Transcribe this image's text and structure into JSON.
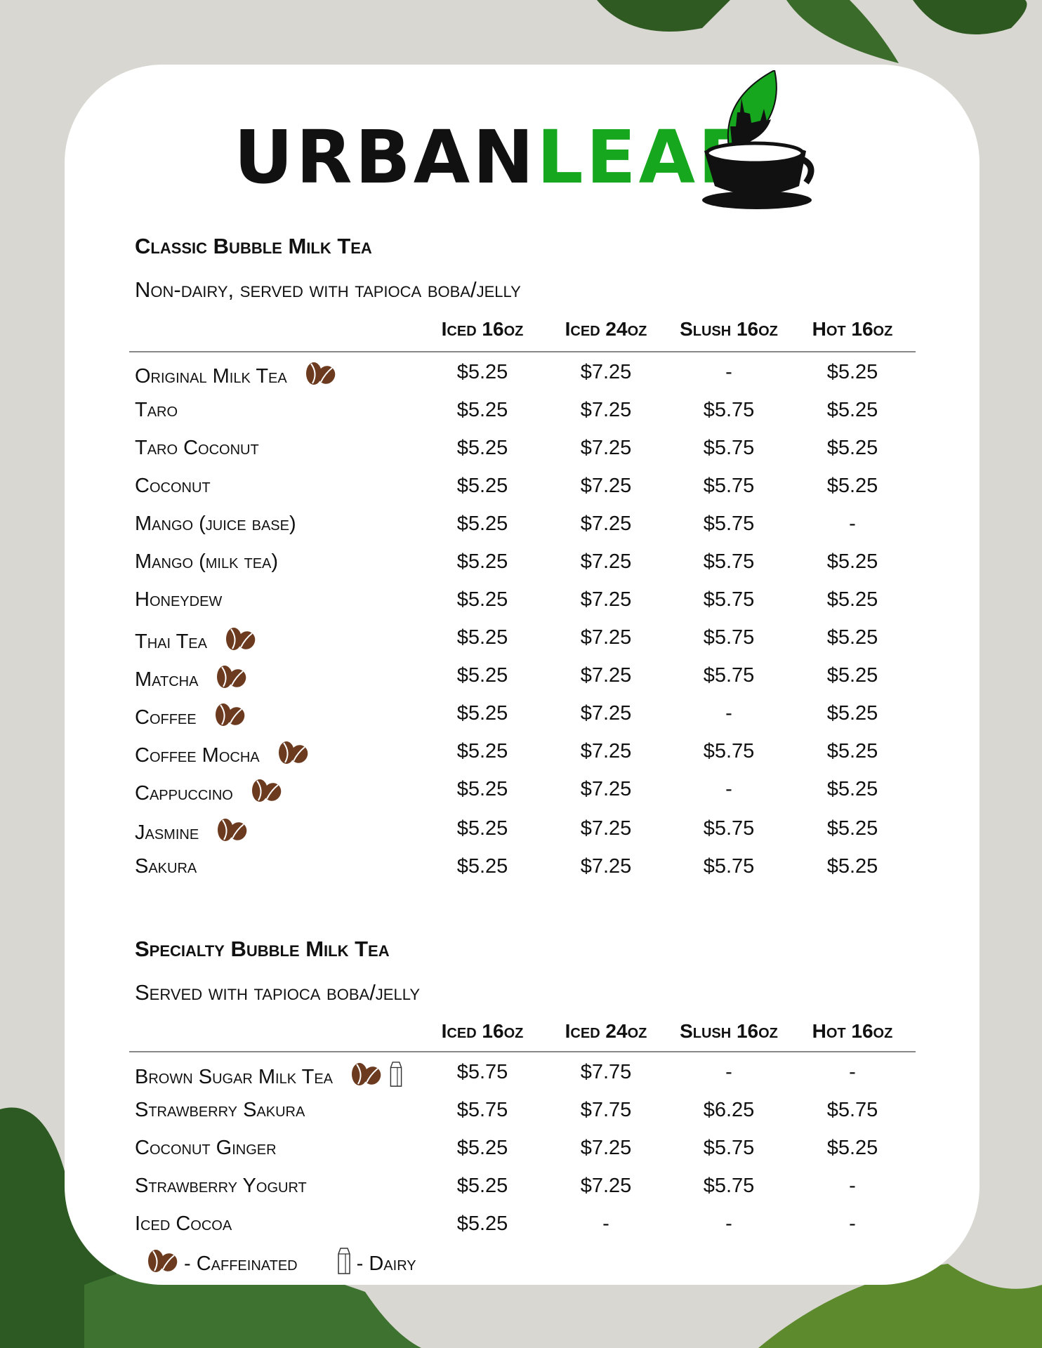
{
  "brand": {
    "name_part1": "URBAN",
    "name_part2": "LEAF",
    "colors": {
      "green": "#16a71e",
      "black": "#111111",
      "bean": "#6b3a1f"
    }
  },
  "columns": [
    "Iced 16oz",
    "Iced 24oz",
    "Slush 16oz",
    "Hot 16oz"
  ],
  "sections": [
    {
      "title": "Classic Bubble Milk Tea",
      "subtitle": "Non-dairy, served with tapioca boba/jelly",
      "rows": [
        {
          "name": "Original Milk Tea",
          "caffeinated": true,
          "dairy": false,
          "prices": [
            "$5.25",
            "$7.25",
            "-",
            "$5.25"
          ]
        },
        {
          "name": "Taro",
          "caffeinated": false,
          "dairy": false,
          "prices": [
            "$5.25",
            "$7.25",
            "$5.75",
            "$5.25"
          ]
        },
        {
          "name": "Taro Coconut",
          "caffeinated": false,
          "dairy": false,
          "prices": [
            "$5.25",
            "$7.25",
            "$5.75",
            "$5.25"
          ]
        },
        {
          "name": "Coconut",
          "caffeinated": false,
          "dairy": false,
          "prices": [
            "$5.25",
            "$7.25",
            "$5.75",
            "$5.25"
          ]
        },
        {
          "name": "Mango (juice base)",
          "caffeinated": false,
          "dairy": false,
          "prices": [
            "$5.25",
            "$7.25",
            "$5.75",
            "-"
          ]
        },
        {
          "name": "Mango (milk tea)",
          "caffeinated": false,
          "dairy": false,
          "prices": [
            "$5.25",
            "$7.25",
            "$5.75",
            "$5.25"
          ]
        },
        {
          "name": "Honeydew",
          "caffeinated": false,
          "dairy": false,
          "prices": [
            "$5.25",
            "$7.25",
            "$5.75",
            "$5.25"
          ]
        },
        {
          "name": "Thai Tea",
          "caffeinated": true,
          "dairy": false,
          "prices": [
            "$5.25",
            "$7.25",
            "$5.75",
            "$5.25"
          ]
        },
        {
          "name": "Matcha",
          "caffeinated": true,
          "dairy": false,
          "prices": [
            "$5.25",
            "$7.25",
            "$5.75",
            "$5.25"
          ]
        },
        {
          "name": "Coffee",
          "caffeinated": true,
          "dairy": false,
          "prices": [
            "$5.25",
            "$7.25",
            "-",
            "$5.25"
          ]
        },
        {
          "name": "Coffee Mocha",
          "caffeinated": true,
          "dairy": false,
          "prices": [
            "$5.25",
            "$7.25",
            "$5.75",
            "$5.25"
          ]
        },
        {
          "name": "Cappuccino",
          "caffeinated": true,
          "dairy": false,
          "prices": [
            "$5.25",
            "$7.25",
            "-",
            "$5.25"
          ]
        },
        {
          "name": "Jasmine",
          "caffeinated": true,
          "dairy": false,
          "prices": [
            "$5.25",
            "$7.25",
            "$5.75",
            "$5.25"
          ]
        },
        {
          "name": "Sakura",
          "caffeinated": false,
          "dairy": false,
          "prices": [
            "$5.25",
            "$7.25",
            "$5.75",
            "$5.25"
          ]
        }
      ]
    },
    {
      "title": "Specialty Bubble Milk Tea",
      "subtitle": "Served with tapioca boba/jelly",
      "rows": [
        {
          "name": "Brown Sugar Milk Tea",
          "caffeinated": true,
          "dairy": true,
          "prices": [
            "$5.75",
            "$7.75",
            "-",
            "-"
          ]
        },
        {
          "name": "Strawberry Sakura",
          "caffeinated": false,
          "dairy": false,
          "prices": [
            "$5.75",
            "$7.75",
            "$6.25",
            "$5.75"
          ]
        },
        {
          "name": "Coconut Ginger",
          "caffeinated": false,
          "dairy": false,
          "prices": [
            "$5.25",
            "$7.25",
            "$5.75",
            "$5.25"
          ]
        },
        {
          "name": "Strawberry Yogurt",
          "caffeinated": false,
          "dairy": false,
          "prices": [
            "$5.25",
            "$7.25",
            "$5.75",
            "-"
          ]
        },
        {
          "name": "Iced Cocoa",
          "caffeinated": false,
          "dairy": false,
          "prices": [
            "$5.25",
            "-",
            "-",
            "-"
          ]
        }
      ]
    }
  ],
  "legend": {
    "caffeinated": "- Caffeinated",
    "dairy": "- Dairy"
  }
}
